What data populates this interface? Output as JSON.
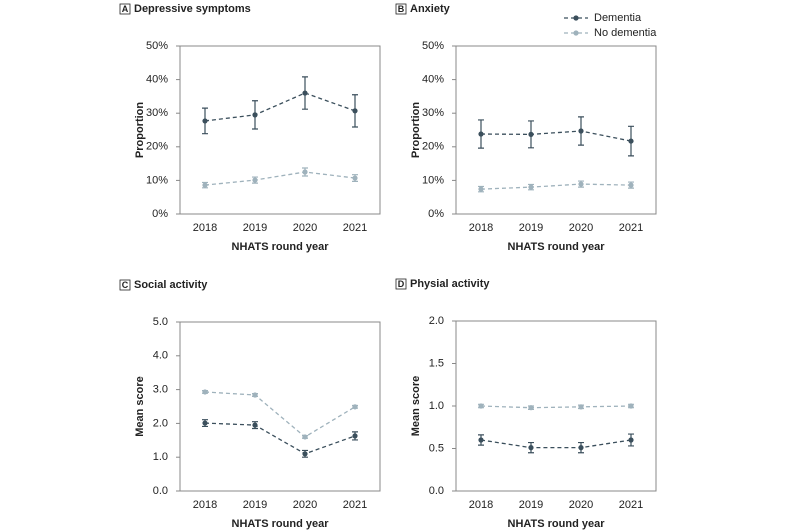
{
  "chart_data": [
    {
      "type": "line",
      "panel": "A",
      "title": "Depressive symptoms",
      "x_label": "NHATS round year",
      "y_label": "Proportion",
      "categories": [
        "2018",
        "2019",
        "2020",
        "2021"
      ],
      "ylim": [
        0,
        50
      ],
      "yticks": [
        {
          "value": 0,
          "label": "0%"
        },
        {
          "value": 10,
          "label": "10%"
        },
        {
          "value": 20,
          "label": "20%"
        },
        {
          "value": 30,
          "label": "30%"
        },
        {
          "value": 40,
          "label": "40%"
        },
        {
          "value": 50,
          "label": "50%"
        }
      ],
      "series": [
        {
          "color": "#3b4f5c",
          "values": [
            27.7,
            29.5,
            36.0,
            30.7
          ],
          "errors": [
            3.8,
            4.2,
            4.8,
            4.8
          ]
        },
        {
          "color": "#9fb2bc",
          "values": [
            8.6,
            10.1,
            12.5,
            10.7
          ],
          "errors": [
            0.8,
            0.9,
            1.2,
            1.0
          ]
        }
      ]
    },
    {
      "type": "line",
      "panel": "B",
      "title": "Anxiety",
      "x_label": "NHATS round year",
      "y_label": "Proportion",
      "categories": [
        "2018",
        "2019",
        "2020",
        "2021"
      ],
      "ylim": [
        0,
        50
      ],
      "yticks": [
        {
          "value": 0,
          "label": "0%"
        },
        {
          "value": 10,
          "label": "10%"
        },
        {
          "value": 20,
          "label": "20%"
        },
        {
          "value": 30,
          "label": "30%"
        },
        {
          "value": 40,
          "label": "40%"
        },
        {
          "value": 50,
          "label": "50%"
        }
      ],
      "legend": "upper right",
      "series": [
        {
          "name": "Dementia",
          "color": "#3b4f5c",
          "values": [
            23.8,
            23.7,
            24.7,
            21.7
          ],
          "errors": [
            4.2,
            4.0,
            4.2,
            4.4
          ]
        },
        {
          "name": "No dementia",
          "color": "#9fb2bc",
          "values": [
            7.4,
            8.0,
            8.9,
            8.6
          ],
          "errors": [
            0.8,
            0.8,
            0.9,
            0.9
          ]
        }
      ]
    },
    {
      "type": "line",
      "panel": "C",
      "title": "Social activity",
      "x_label": "NHATS round year",
      "y_label": "Mean score",
      "categories": [
        "2018",
        "2019",
        "2020",
        "2021"
      ],
      "ylim": [
        0,
        5
      ],
      "yticks": [
        {
          "value": 0,
          "label": "0.0"
        },
        {
          "value": 1,
          "label": "1.0"
        },
        {
          "value": 2,
          "label": "2.0"
        },
        {
          "value": 3,
          "label": "3.0"
        },
        {
          "value": 4,
          "label": "4.0"
        },
        {
          "value": 5,
          "label": "5.0"
        }
      ],
      "series": [
        {
          "color": "#3b4f5c",
          "values": [
            2.01,
            1.95,
            1.1,
            1.63
          ],
          "errors": [
            0.1,
            0.1,
            0.1,
            0.12
          ]
        },
        {
          "color": "#9fb2bc",
          "values": [
            2.93,
            2.84,
            1.6,
            2.49
          ],
          "errors": [
            0.04,
            0.04,
            0.04,
            0.04
          ]
        }
      ]
    },
    {
      "type": "line",
      "panel": "D",
      "title": "Physial activity",
      "x_label": "NHATS round year",
      "y_label": "Mean score",
      "categories": [
        "2018",
        "2019",
        "2020",
        "2021"
      ],
      "ylim": [
        0,
        2
      ],
      "yticks": [
        {
          "value": 0,
          "label": "0.0"
        },
        {
          "value": 0.5,
          "label": "0.5"
        },
        {
          "value": 1,
          "label": "1.0"
        },
        {
          "value": 1.5,
          "label": "1.5"
        },
        {
          "value": 2,
          "label": "2.0"
        }
      ],
      "series": [
        {
          "color": "#3b4f5c",
          "values": [
            0.6,
            0.51,
            0.51,
            0.6
          ],
          "errors": [
            0.06,
            0.06,
            0.06,
            0.07
          ]
        },
        {
          "color": "#9fb2bc",
          "values": [
            1.0,
            0.98,
            0.99,
            1.0
          ],
          "errors": [
            0.02,
            0.02,
            0.02,
            0.02
          ]
        }
      ]
    }
  ]
}
